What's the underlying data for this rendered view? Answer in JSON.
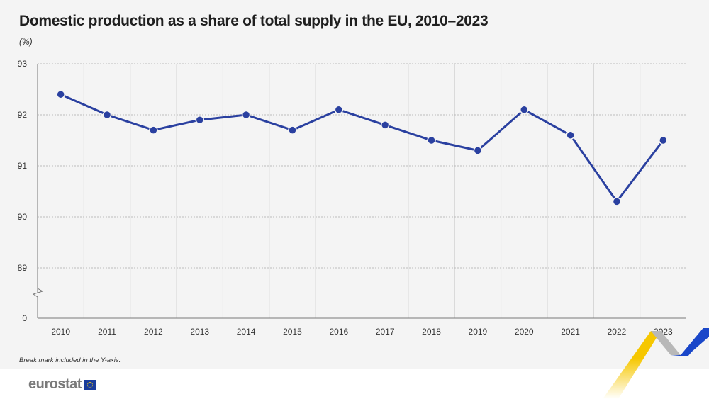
{
  "chart_data": {
    "type": "line",
    "title": "Domestic production as a share of total supply in the EU, 2010–2023",
    "unit": "(%)",
    "categories": [
      "2010",
      "2011",
      "2012",
      "2013",
      "2014",
      "2015",
      "2016",
      "2017",
      "2018",
      "2019",
      "2020",
      "2021",
      "2022",
      "2023"
    ],
    "values": [
      92.4,
      92.0,
      91.7,
      91.9,
      92.0,
      91.7,
      92.1,
      91.8,
      91.5,
      91.3,
      92.1,
      91.6,
      90.3,
      91.5
    ],
    "y_ticks": [
      "93",
      "92",
      "91",
      "90",
      "89",
      "0"
    ],
    "ylim": [
      89,
      93
    ],
    "y_axis_break": true,
    "grid": true,
    "line_color": "#2a40a0",
    "note": "Break mark included in the Y-axis."
  },
  "footer": {
    "logo": "eurostat"
  }
}
